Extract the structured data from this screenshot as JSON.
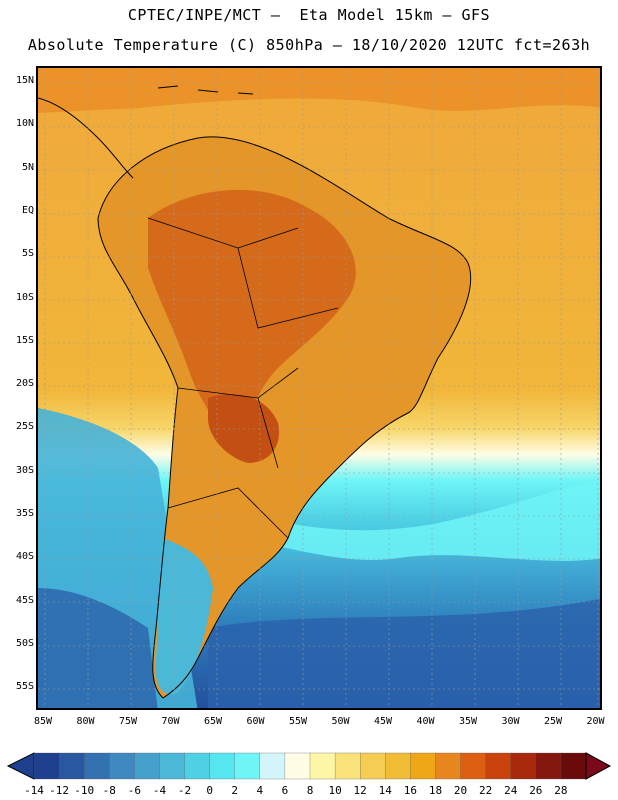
{
  "header": {
    "line1": "CPTEC/INPE/MCT –  Eta Model 15km – GFS",
    "line2": "Absolute Temperature (C) 850hPa – 18/10/2020 12UTC fct=263h"
  },
  "axes": {
    "lat_labels": [
      "15N",
      "10N",
      "5N",
      "EQ",
      "5S",
      "10S",
      "15S",
      "20S",
      "25S",
      "30S",
      "35S",
      "40S",
      "45S",
      "50S",
      "55S"
    ],
    "lon_labels": [
      "85W",
      "80W",
      "75W",
      "70W",
      "65W",
      "60W",
      "55W",
      "50W",
      "45W",
      "40W",
      "35W",
      "30W",
      "25W",
      "20W"
    ]
  },
  "colorbar": {
    "ticks": [
      "-14",
      "-12",
      "-10",
      "-8",
      "-6",
      "-4",
      "-2",
      "0",
      "2",
      "4",
      "6",
      "8",
      "10",
      "12",
      "14",
      "16",
      "18",
      "20",
      "22",
      "24",
      "26",
      "28"
    ],
    "colors": [
      "#1f3f8f",
      "#2a58a0",
      "#3471b0",
      "#3f89c0",
      "#46a0cc",
      "#4bb8d8",
      "#4fd0e4",
      "#55e6f0",
      "#6ef5f7",
      "#d4f6fb",
      "#fffde6",
      "#fdf6a6",
      "#f9e27a",
      "#f5cd52",
      "#f1bc35",
      "#efa617",
      "#e8861f",
      "#dd5f12",
      "#c9430d",
      "#a8290b",
      "#84170e",
      "#6b0a0a"
    ]
  },
  "map": {
    "ocean_color": "#f1b43a",
    "cold_deep": "#2b5fa8",
    "cold_mid": "#3fa7d2",
    "cold_light": "#4fd2e6",
    "cyan": "#6ef5f7",
    "pale": "#fffde6",
    "pale_yellow": "#fbea8a",
    "warm_orange": "#e8861f",
    "hot": "#d4651a",
    "hottest": "#c44f12"
  }
}
